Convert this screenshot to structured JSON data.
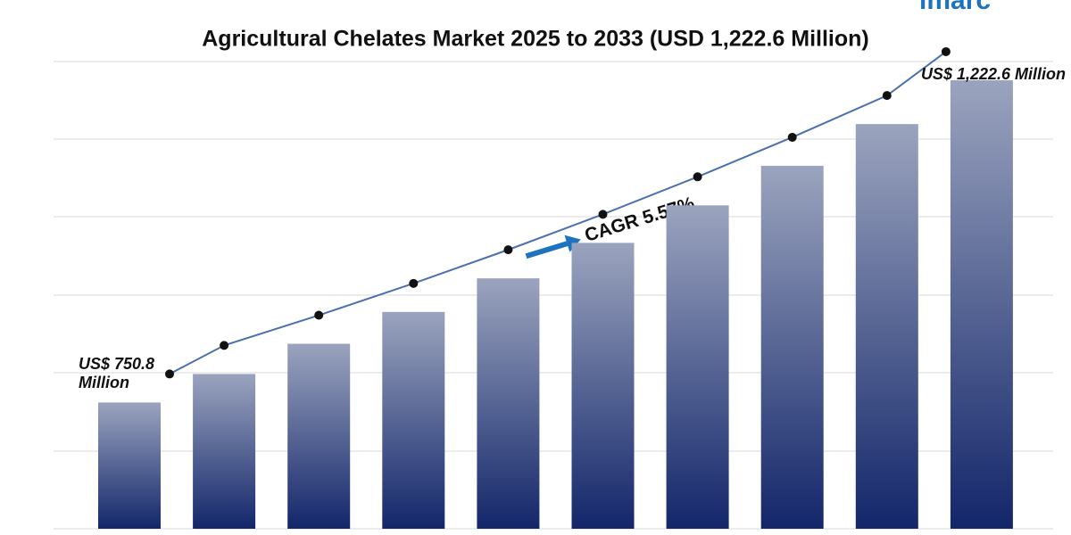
{
  "chart_data": {
    "type": "bar",
    "title": "Agricultural Chelates Market 2025 to 2033 (USD 1,222.6 Million)",
    "logo": "imarc",
    "annotation": "CAGR 5.57%",
    "categories": [
      null,
      null,
      null,
      null,
      null,
      null,
      null,
      null,
      null,
      null
    ],
    "values": [
      750.8,
      792.6,
      836.8,
      883.4,
      932.6,
      984.5,
      1039.4,
      1097.3,
      1158.4,
      1222.6
    ],
    "value_labels": [
      "US$ 750.8 Million",
      null,
      null,
      null,
      null,
      null,
      null,
      null,
      null,
      "US$ 1,222.6 Million"
    ],
    "color": "#13266a",
    "line_color": "#4a70b0",
    "ylim": [
      566,
      1340
    ]
  }
}
